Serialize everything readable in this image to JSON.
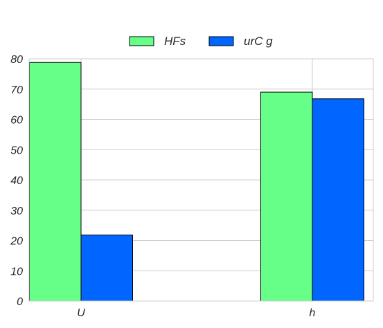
{
  "chart_data": {
    "type": "bar",
    "categories": [
      "U",
      "h"
    ],
    "series": [
      {
        "name": "HFs",
        "values": [
          78.8,
          69.0
        ],
        "color": "#66ff88"
      },
      {
        "name": "urC g",
        "values": [
          21.8,
          66.8
        ],
        "color": "#0066ff"
      }
    ],
    "yticks": [
      "0",
      "10",
      "20",
      "30",
      "40",
      "50",
      "60",
      "70",
      "80"
    ],
    "ylim": [
      0,
      80
    ],
    "grid": true,
    "legend_position": "top-center",
    "xlabel": "",
    "ylabel": "",
    "title": ""
  }
}
